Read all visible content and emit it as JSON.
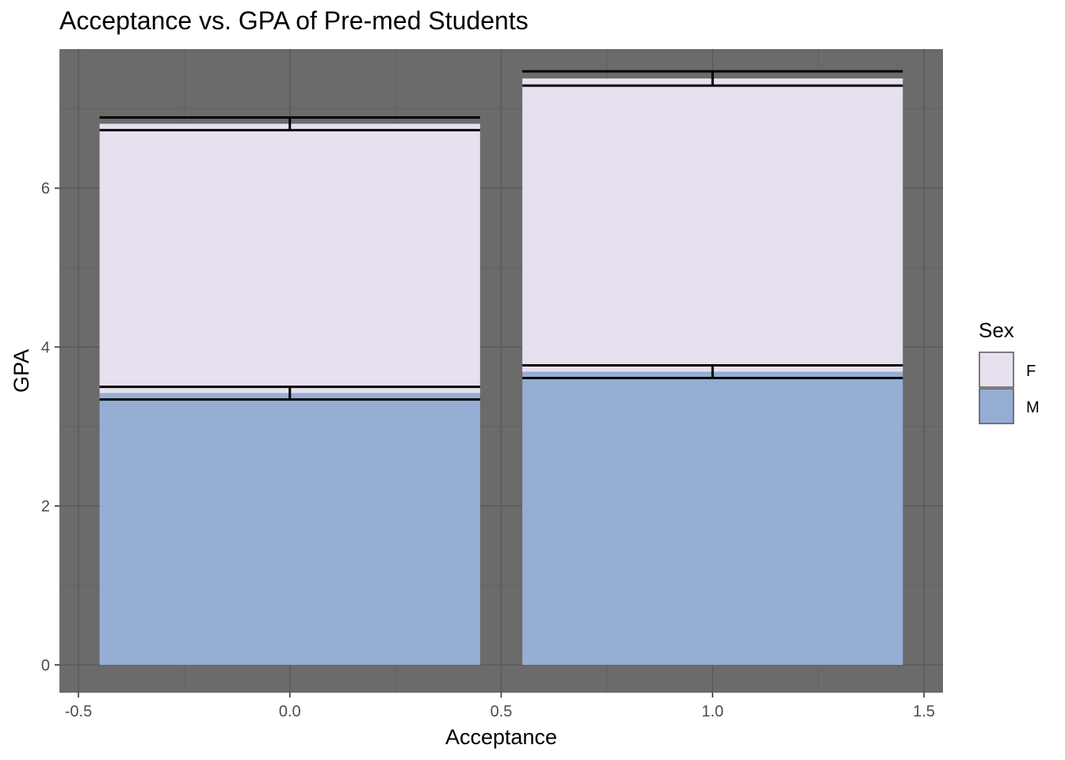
{
  "chart_data": {
    "type": "bar",
    "title": "Acceptance vs. GPA of Pre-med Students",
    "xlabel": "Acceptance",
    "ylabel": "GPA",
    "xlim": [
      -0.545,
      1.545
    ],
    "ylim": [
      -0.35,
      7.75
    ],
    "x_ticks": [
      -0.5,
      0.0,
      0.5,
      1.0,
      1.5
    ],
    "x_tick_labels": [
      "-0.5",
      "0.0",
      "0.5",
      "1.0",
      "1.5"
    ],
    "y_ticks": [
      0,
      2,
      4,
      6
    ],
    "y_tick_labels": [
      "0",
      "2",
      "4",
      "6"
    ],
    "x_minor": [
      -0.25,
      0.25,
      0.75,
      1.25
    ],
    "y_minor": [
      1,
      3,
      5,
      7
    ],
    "grid": true,
    "stacked": true,
    "bar_width": 0.9,
    "categories": [
      0,
      1
    ],
    "series": [
      {
        "name": "M",
        "values": [
          3.42,
          3.69
        ],
        "errors": [
          0.08,
          0.08
        ]
      },
      {
        "name": "F",
        "values": [
          3.39,
          3.69
        ],
        "errors": [
          0.08,
          0.09
        ]
      }
    ],
    "legend": {
      "title": "Sex",
      "position": "right",
      "entries": [
        {
          "label": "F",
          "color": "#e6e0ef"
        },
        {
          "label": "M",
          "color": "#96aed4"
        }
      ]
    },
    "colors": {
      "panel": "#6b6b6b",
      "grid_major": "#5a5a5a",
      "grid_minor": "#626262",
      "M": "#96aed4",
      "F": "#e6e0ef",
      "errorbar": "#000000"
    }
  }
}
